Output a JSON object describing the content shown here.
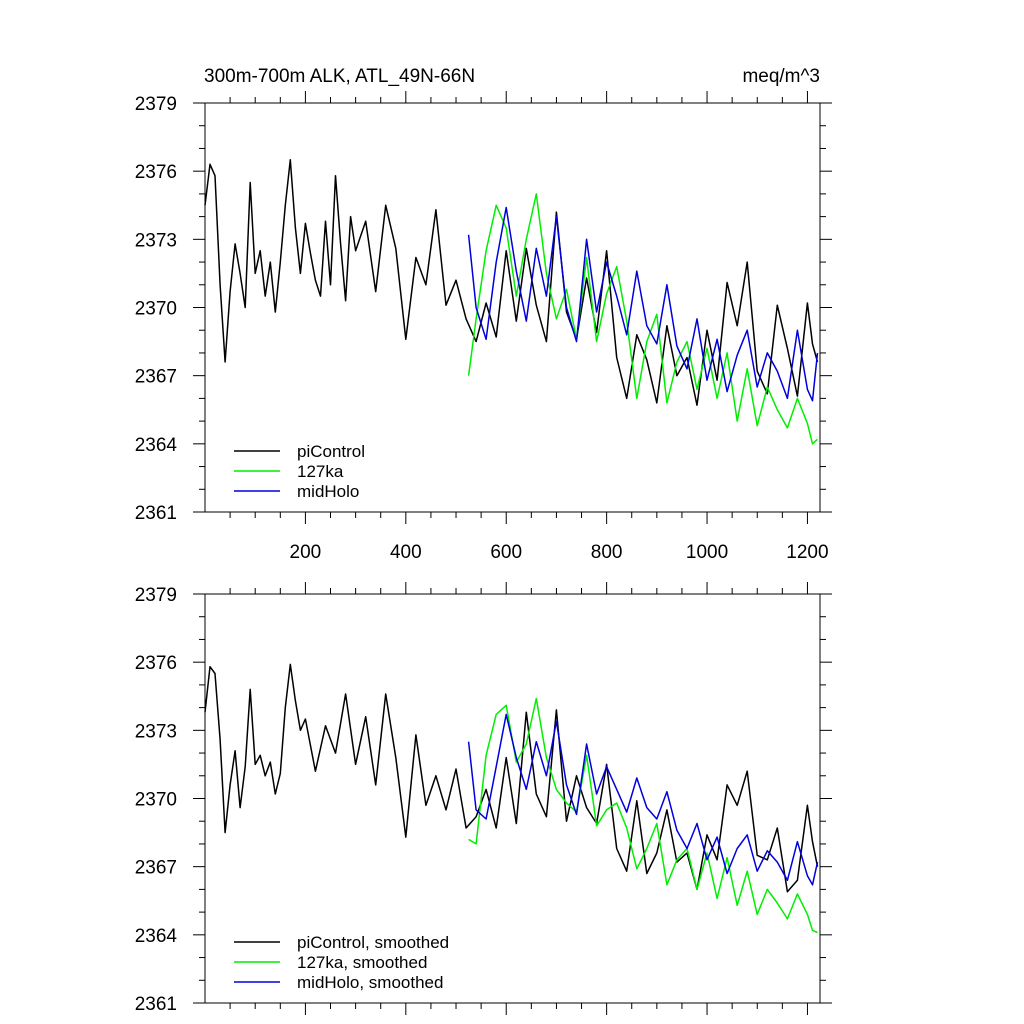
{
  "colors": {
    "picontrol": "#000000",
    "ka127": "#00ee00",
    "midholo": "#0000dd"
  },
  "chart_data": [
    {
      "type": "line",
      "title": "300m-700m ALK, ATL_49N-66N",
      "units": "meq/m^3",
      "xlim": [
        0,
        1225
      ],
      "ylim": [
        2361,
        2379
      ],
      "xticks": [
        200,
        400,
        600,
        800,
        1000,
        1200
      ],
      "xtick_labels": [
        "200",
        "400",
        "600",
        "800",
        "1000",
        "1200"
      ],
      "yticks": [
        2361,
        2364,
        2367,
        2370,
        2373,
        2376,
        2379
      ],
      "ytick_labels": [
        "2361",
        "2364",
        "2367",
        "2370",
        "2373",
        "2376",
        "2379"
      ],
      "legend": {
        "placement": "bottom-left",
        "entries": [
          "piControl",
          "127ka",
          "midHolo"
        ]
      },
      "series": [
        {
          "name": "piControl",
          "color": "#000000",
          "x": [
            0,
            10,
            20,
            30,
            40,
            50,
            60,
            70,
            80,
            90,
            100,
            110,
            120,
            130,
            140,
            150,
            160,
            170,
            180,
            190,
            200,
            210,
            220,
            230,
            240,
            250,
            260,
            270,
            280,
            290,
            300,
            320,
            340,
            360,
            380,
            400,
            420,
            440,
            460,
            480,
            500,
            520,
            540,
            560,
            580,
            600,
            620,
            640,
            660,
            680,
            700,
            720,
            740,
            760,
            780,
            800,
            820,
            840,
            860,
            880,
            900,
            920,
            940,
            960,
            980,
            1000,
            1020,
            1040,
            1060,
            1080,
            1100,
            1120,
            1140,
            1160,
            1180,
            1200,
            1210,
            1220
          ],
          "y": [
            2374.5,
            2376.3,
            2375.8,
            2371.0,
            2367.6,
            2370.7,
            2372.8,
            2371.5,
            2370.0,
            2375.5,
            2371.5,
            2372.5,
            2370.5,
            2372.0,
            2369.8,
            2372.0,
            2374.5,
            2376.5,
            2373.5,
            2371.5,
            2373.7,
            2372.4,
            2371.2,
            2370.5,
            2373.8,
            2371.0,
            2375.8,
            2372.8,
            2370.3,
            2374.0,
            2372.5,
            2373.8,
            2370.7,
            2374.5,
            2372.6,
            2368.6,
            2372.2,
            2371.0,
            2374.3,
            2370.1,
            2371.2,
            2369.5,
            2368.5,
            2370.2,
            2368.7,
            2372.5,
            2369.4,
            2372.6,
            2370.1,
            2368.5,
            2374.2,
            2369.8,
            2368.6,
            2371.3,
            2368.9,
            2372.5,
            2367.8,
            2366.0,
            2368.8,
            2367.7,
            2365.8,
            2369.2,
            2367.0,
            2367.8,
            2365.7,
            2369.0,
            2366.8,
            2371.1,
            2369.2,
            2372.0,
            2367.2,
            2366.2,
            2370.1,
            2368.2,
            2366.1,
            2370.2,
            2368.4,
            2367.6
          ]
        },
        {
          "name": "127ka",
          "color": "#00ee00",
          "x": [
            525,
            540,
            560,
            580,
            600,
            620,
            640,
            660,
            680,
            700,
            720,
            740,
            760,
            780,
            800,
            820,
            840,
            860,
            880,
            900,
            920,
            940,
            960,
            980,
            1000,
            1020,
            1040,
            1060,
            1080,
            1100,
            1120,
            1140,
            1160,
            1180,
            1200,
            1210,
            1220
          ],
          "y": [
            2367.0,
            2369.5,
            2372.5,
            2374.5,
            2373.5,
            2370.5,
            2373.0,
            2375.0,
            2371.5,
            2369.5,
            2370.8,
            2368.6,
            2372.2,
            2368.5,
            2370.6,
            2371.8,
            2369.4,
            2366.0,
            2368.5,
            2369.7,
            2365.8,
            2367.6,
            2368.5,
            2366.4,
            2368.2,
            2366.0,
            2368.0,
            2365.0,
            2367.3,
            2364.8,
            2366.5,
            2365.5,
            2364.7,
            2366.0,
            2364.9,
            2364.0,
            2364.2
          ]
        },
        {
          "name": "midHolo",
          "color": "#0000dd",
          "x": [
            525,
            540,
            560,
            580,
            600,
            620,
            640,
            660,
            680,
            700,
            720,
            740,
            760,
            780,
            800,
            820,
            840,
            860,
            880,
            900,
            920,
            940,
            960,
            980,
            1000,
            1020,
            1040,
            1060,
            1080,
            1100,
            1120,
            1140,
            1160,
            1180,
            1200,
            1210,
            1220
          ],
          "y": [
            2373.2,
            2370.0,
            2368.6,
            2372.0,
            2374.4,
            2371.6,
            2369.4,
            2372.6,
            2370.5,
            2374.0,
            2370.0,
            2368.5,
            2373.0,
            2369.8,
            2372.0,
            2370.5,
            2368.8,
            2371.6,
            2369.2,
            2368.4,
            2371.0,
            2368.3,
            2367.3,
            2369.5,
            2366.8,
            2368.6,
            2366.3,
            2367.9,
            2369.0,
            2366.5,
            2368.0,
            2367.2,
            2366.0,
            2369.0,
            2366.4,
            2365.9,
            2368.0
          ]
        }
      ]
    },
    {
      "type": "line",
      "xlim": [
        0,
        1225
      ],
      "ylim": [
        2361,
        2379
      ],
      "xticks": [
        200,
        400,
        600,
        800,
        1000,
        1200
      ],
      "yticks": [
        2361,
        2364,
        2367,
        2370,
        2373,
        2376,
        2379
      ],
      "ytick_labels": [
        "2361",
        "2364",
        "2367",
        "2370",
        "2373",
        "2376",
        "2379"
      ],
      "legend": {
        "placement": "bottom-left",
        "entries": [
          "piControl, smoothed",
          "127ka, smoothed",
          "midHolo, smoothed"
        ]
      },
      "series": [
        {
          "name": "piControl, smoothed",
          "color": "#000000",
          "x": [
            0,
            10,
            20,
            30,
            40,
            50,
            60,
            70,
            80,
            90,
            100,
            110,
            120,
            130,
            140,
            150,
            160,
            170,
            180,
            190,
            200,
            220,
            240,
            260,
            280,
            300,
            320,
            340,
            360,
            380,
            400,
            420,
            440,
            460,
            480,
            500,
            520,
            540,
            560,
            580,
            600,
            620,
            640,
            660,
            680,
            700,
            720,
            740,
            760,
            780,
            800,
            820,
            840,
            860,
            880,
            900,
            920,
            940,
            960,
            980,
            1000,
            1020,
            1040,
            1060,
            1080,
            1100,
            1120,
            1140,
            1160,
            1180,
            1200,
            1210,
            1220
          ],
          "y": [
            2373.8,
            2375.8,
            2375.5,
            2372.6,
            2368.5,
            2370.6,
            2372.1,
            2369.6,
            2371.4,
            2374.8,
            2371.5,
            2371.9,
            2371.0,
            2371.6,
            2370.2,
            2371.1,
            2374.0,
            2375.9,
            2374.3,
            2373.0,
            2373.5,
            2371.2,
            2373.2,
            2372.0,
            2374.6,
            2371.5,
            2373.6,
            2370.6,
            2374.6,
            2371.8,
            2368.3,
            2372.8,
            2369.7,
            2371.0,
            2369.5,
            2371.3,
            2368.7,
            2369.2,
            2370.4,
            2368.7,
            2371.8,
            2368.9,
            2373.8,
            2370.2,
            2369.2,
            2373.9,
            2369.0,
            2371.0,
            2369.6,
            2368.9,
            2371.5,
            2367.8,
            2366.8,
            2369.9,
            2366.7,
            2367.6,
            2369.5,
            2367.2,
            2367.6,
            2366.0,
            2368.4,
            2367.3,
            2370.6,
            2369.7,
            2371.2,
            2367.5,
            2367.3,
            2368.7,
            2365.9,
            2366.4,
            2369.7,
            2368.1,
            2367.0
          ]
        },
        {
          "name": "127ka, smoothed",
          "color": "#00ee00",
          "x": [
            525,
            540,
            560,
            580,
            600,
            620,
            640,
            660,
            680,
            700,
            720,
            740,
            760,
            780,
            800,
            820,
            840,
            860,
            880,
            900,
            920,
            940,
            960,
            980,
            1000,
            1020,
            1040,
            1060,
            1080,
            1100,
            1120,
            1140,
            1160,
            1180,
            1200,
            1210,
            1220
          ],
          "y": [
            2368.2,
            2368.0,
            2371.9,
            2373.7,
            2374.1,
            2371.6,
            2372.4,
            2374.4,
            2371.8,
            2370.4,
            2369.8,
            2369.4,
            2371.9,
            2368.8,
            2369.5,
            2369.8,
            2368.7,
            2366.9,
            2367.8,
            2368.9,
            2366.2,
            2367.3,
            2367.8,
            2366.0,
            2367.6,
            2365.6,
            2367.4,
            2365.3,
            2366.8,
            2364.9,
            2366.0,
            2365.4,
            2364.7,
            2365.8,
            2364.9,
            2364.2,
            2364.1
          ]
        },
        {
          "name": "midHolo, smoothed",
          "color": "#0000dd",
          "x": [
            525,
            540,
            560,
            580,
            600,
            620,
            640,
            660,
            680,
            700,
            720,
            740,
            760,
            780,
            800,
            820,
            840,
            860,
            880,
            900,
            920,
            940,
            960,
            980,
            1000,
            1020,
            1040,
            1060,
            1080,
            1100,
            1120,
            1140,
            1160,
            1180,
            1200,
            1210,
            1220
          ],
          "y": [
            2372.5,
            2369.5,
            2369.1,
            2371.4,
            2373.7,
            2371.8,
            2370.4,
            2372.5,
            2371.0,
            2373.4,
            2370.6,
            2369.3,
            2372.4,
            2370.2,
            2371.4,
            2370.4,
            2369.4,
            2370.9,
            2369.6,
            2369.1,
            2370.3,
            2368.6,
            2367.8,
            2368.9,
            2367.3,
            2368.3,
            2366.7,
            2367.8,
            2368.4,
            2366.8,
            2367.7,
            2367.2,
            2366.4,
            2368.1,
            2366.6,
            2366.2,
            2367.2
          ]
        }
      ]
    }
  ]
}
